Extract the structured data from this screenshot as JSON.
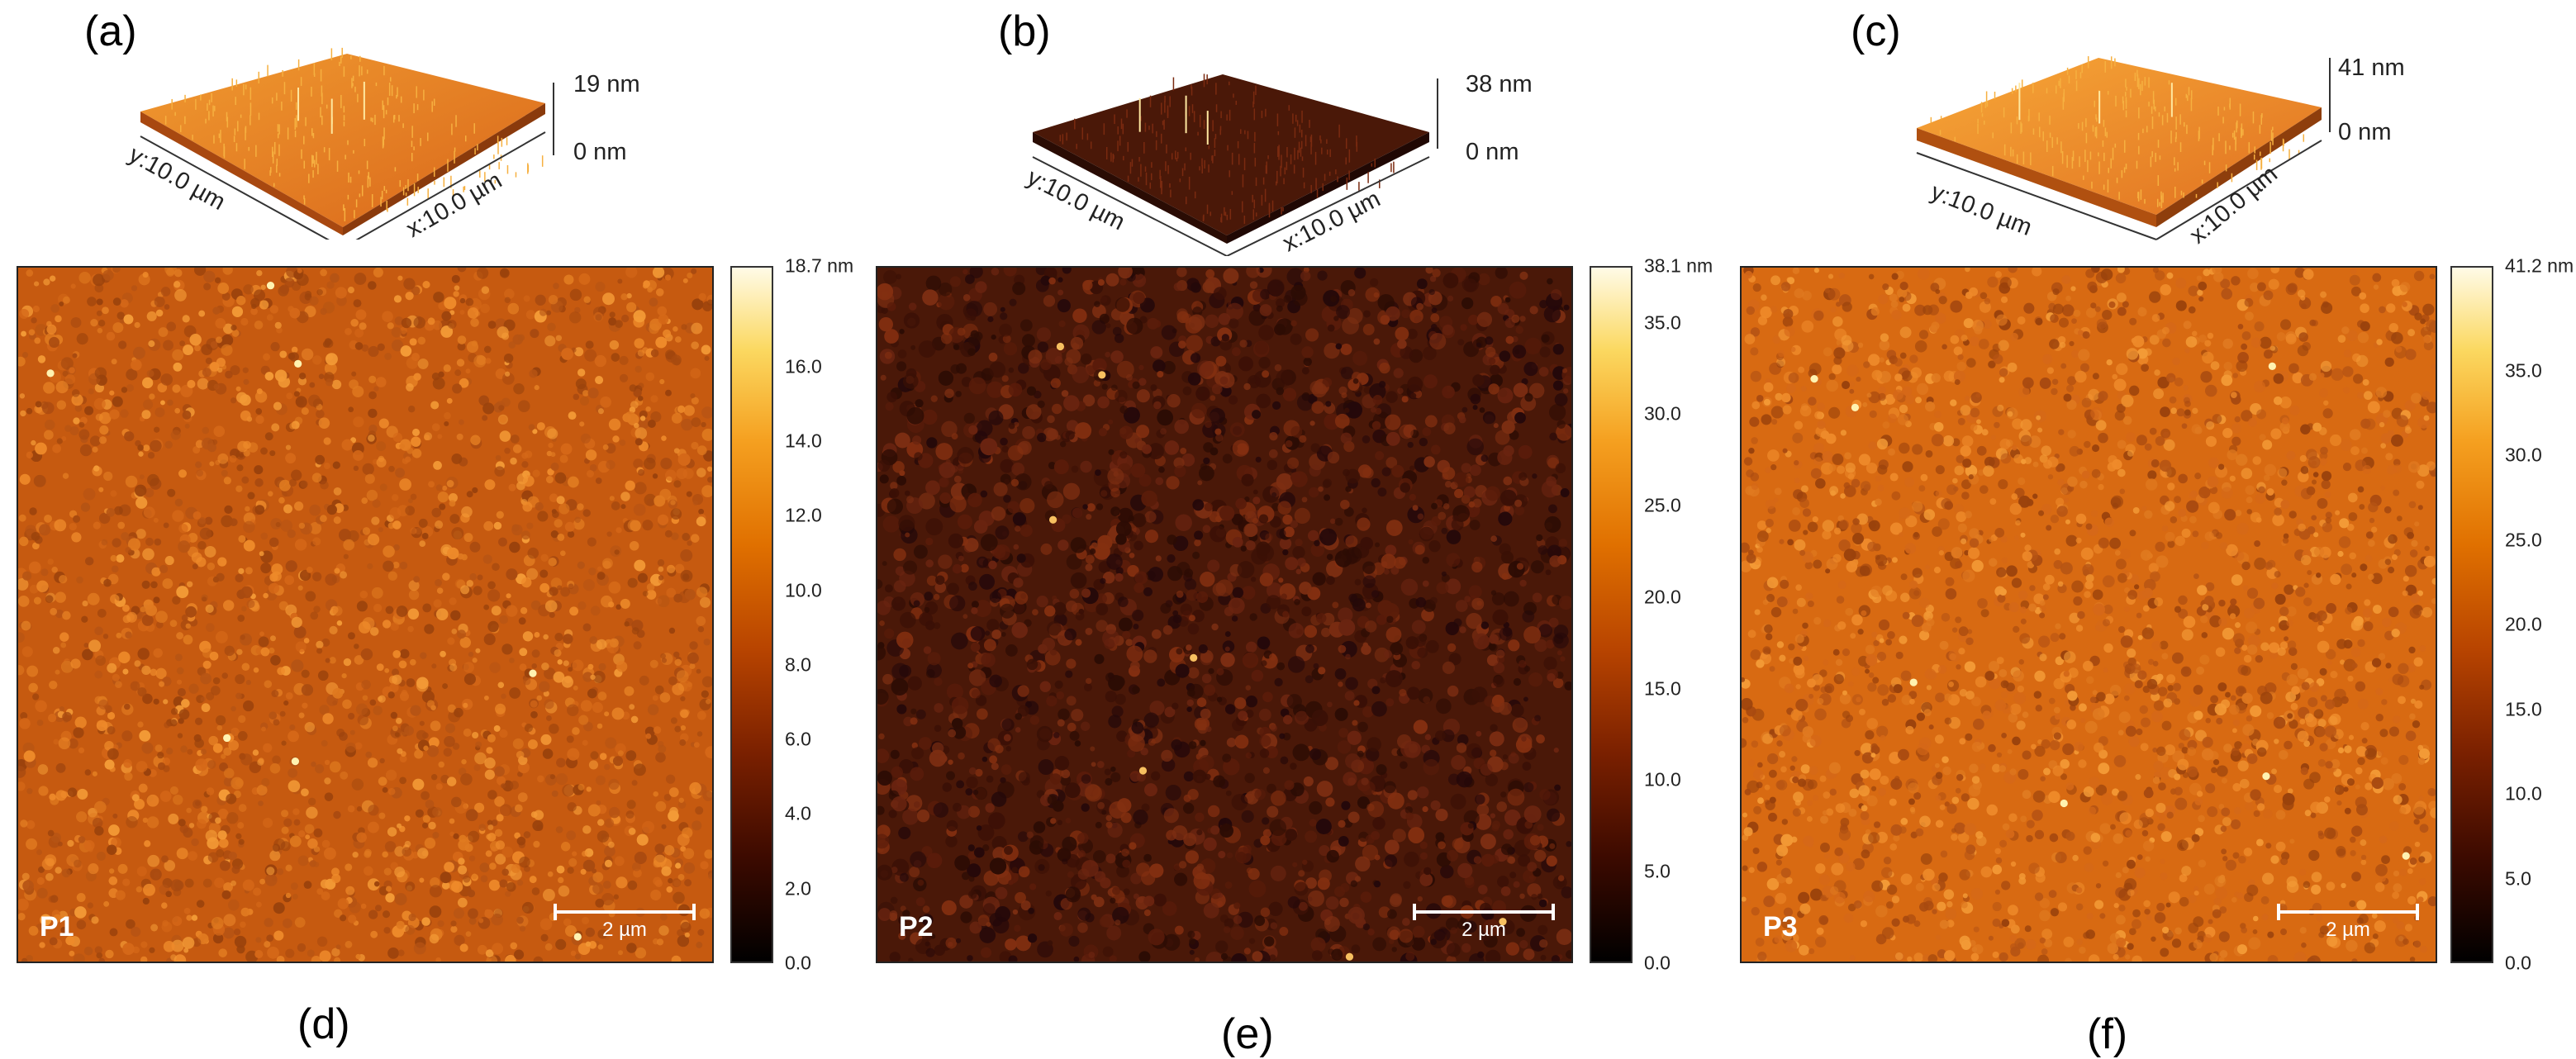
{
  "panels": [
    {
      "letter3d": "(a)",
      "letter2d": "(d)",
      "sample": "P1",
      "z_max_3d": "19 nm",
      "z_min_3d": "0 nm",
      "y_label": "y:10.0 µm",
      "x_label": "x:10.0 µm",
      "scale_bar": "2 µm",
      "colorbar_ticks": [
        "18.7 nm",
        "16.0",
        "14.0",
        "12.0",
        "10.0",
        "8.0",
        "6.0",
        "4.0",
        "2.0",
        "0.0"
      ],
      "colorbar_max": 18.7,
      "colorbar_values": [
        18.7,
        16.0,
        14.0,
        12.0,
        10.0,
        8.0,
        6.0,
        4.0,
        2.0,
        0.0
      ],
      "base_color": "#c65a10"
    },
    {
      "letter3d": "(b)",
      "letter2d": "(e)",
      "sample": "P2",
      "z_max_3d": "38 nm",
      "z_min_3d": "0 nm",
      "y_label": "y:10.0 µm",
      "x_label": "x:10.0 µm",
      "scale_bar": "2 µm",
      "colorbar_ticks": [
        "38.1 nm",
        "35.0",
        "30.0",
        "25.0",
        "20.0",
        "15.0",
        "10.0",
        "5.0",
        "0.0"
      ],
      "colorbar_max": 38.1,
      "colorbar_values": [
        38.1,
        35.0,
        30.0,
        25.0,
        20.0,
        15.0,
        10.0,
        5.0,
        0.0
      ],
      "base_color": "#4a1808"
    },
    {
      "letter3d": "(c)",
      "letter2d": "(f)",
      "sample": "P3",
      "z_max_3d": "41 nm",
      "z_min_3d": "0 nm",
      "y_label": "y:10.0 µm",
      "x_label": "x:10.0 µm",
      "scale_bar": "2 µm",
      "colorbar_ticks": [
        "41.2 nm",
        "35.0",
        "30.0",
        "25.0",
        "20.0",
        "15.0",
        "10.0",
        "5.0",
        "0.0"
      ],
      "colorbar_max": 41.2,
      "colorbar_values": [
        41.2,
        35.0,
        30.0,
        25.0,
        20.0,
        15.0,
        10.0,
        5.0,
        0.0
      ],
      "base_color": "#d86a12"
    }
  ],
  "colors": {
    "afm_scale": [
      "#000000",
      "#3c0a00",
      "#7a2000",
      "#b84400",
      "#e07000",
      "#f5a020",
      "#fbd860",
      "#fff4c0",
      "#ffffff"
    ]
  }
}
